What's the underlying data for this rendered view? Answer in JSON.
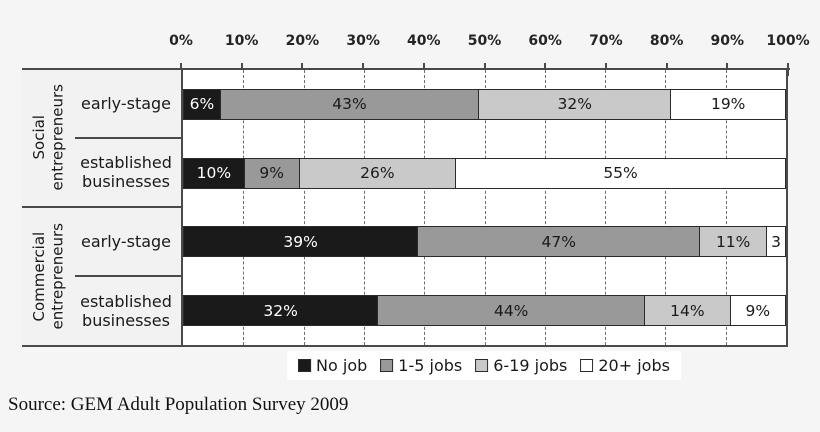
{
  "source_note": "Source: GEM Adult Population Survey 2009",
  "chart_data": {
    "type": "bar",
    "orientation": "horizontal",
    "stacked": true,
    "unit": "percent",
    "grid": "vertical-dashed",
    "axis": {
      "min": 0,
      "max": 100,
      "tick_labels": [
        "0%",
        "10%",
        "20%",
        "30%",
        "40%",
        "50%",
        "60%",
        "70%",
        "80%",
        "90%",
        "100%"
      ]
    },
    "series": [
      {
        "name": "No job",
        "color": "#1a1a1a",
        "label_color": "#ffffff"
      },
      {
        "name": "1-5 jobs",
        "color": "#999999",
        "label_color": "#1a1a1a"
      },
      {
        "name": "6-19 jobs",
        "color": "#c9c9c9",
        "label_color": "#1a1a1a"
      },
      {
        "name": "20+ jobs",
        "color": "#ffffff",
        "label_color": "#1a1a1a"
      }
    ],
    "groups": [
      {
        "label": "Social\nentrepreneurs",
        "rows": [
          {
            "label": "early-stage",
            "values": [
              6,
              43,
              32,
              19
            ],
            "value_labels": [
              "6%",
              "43%",
              "32%",
              "19%"
            ]
          },
          {
            "label": "established\nbusinesses",
            "values": [
              10,
              9,
              26,
              55
            ],
            "value_labels": [
              "10%",
              "9%",
              "26%",
              "55%"
            ]
          }
        ]
      },
      {
        "label": "Commercial\nentrepreneurs",
        "rows": [
          {
            "label": "early-stage",
            "values": [
              39,
              47,
              11,
              3
            ],
            "value_labels": [
              "39%",
              "47%",
              "11%",
              "3"
            ]
          },
          {
            "label": "established\nbusinesses",
            "values": [
              32,
              44,
              14,
              9
            ],
            "value_labels": [
              "32%",
              "44%",
              "14%",
              "9%"
            ]
          }
        ]
      }
    ],
    "legend": {
      "position": "bottom",
      "entries": [
        "No job",
        "1-5 jobs",
        "6-19 jobs",
        "20+ jobs"
      ]
    }
  }
}
